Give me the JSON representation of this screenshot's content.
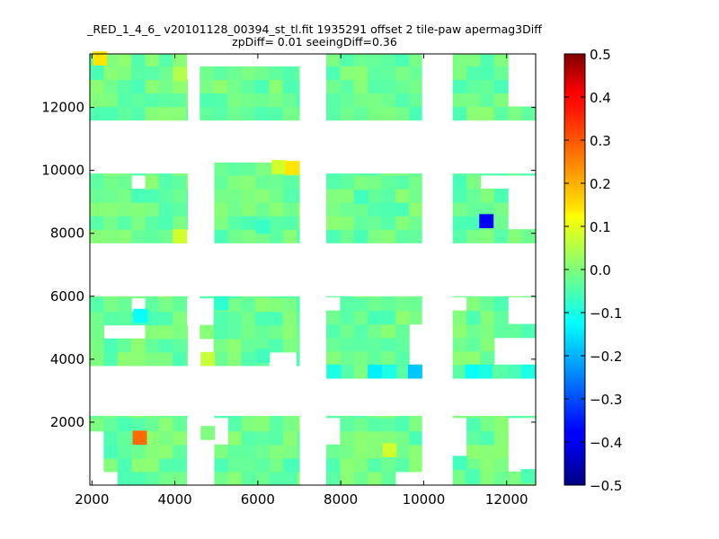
{
  "chart_data": {
    "type": "heatmap",
    "title_lines": [
      "_RED_1_4_6_ v20101128_00394_st_tl.fit 1935291 offset 2 tile-paw apermag3Diff",
      "zpDiff= 0.01 seeingDiff=0.36"
    ],
    "xlabel": "",
    "ylabel": "",
    "xlim": [
      1950,
      12700
    ],
    "ylim": [
      0,
      13700
    ],
    "xticks": [
      2000,
      4000,
      6000,
      8000,
      10000,
      12000
    ],
    "yticks": [
      2000,
      4000,
      6000,
      8000,
      10000,
      12000
    ],
    "colorbar": {
      "colormap": "jet",
      "range": [
        -0.5,
        0.5
      ],
      "ticks": [
        "0.5",
        "0.4",
        "0.3",
        "0.2",
        "0.1",
        "0.0",
        "−0.1",
        "−0.2",
        "−0.3",
        "−0.4",
        "−0.5"
      ]
    },
    "cell_size": [
      333,
      430
    ],
    "background_value": -0.02,
    "regions": [
      {
        "x": [
          1950,
          4300
        ],
        "y": [
          11600,
          13700
        ]
      },
      {
        "x": [
          4600,
          7000
        ],
        "y": [
          11600,
          13300
        ]
      },
      {
        "x": [
          7650,
          9950
        ],
        "y": [
          11600,
          13700
        ]
      },
      {
        "x": [
          10700,
          12700
        ],
        "y": [
          11600,
          13700
        ]
      },
      {
        "x": [
          1950,
          4300
        ],
        "y": [
          7700,
          9900
        ]
      },
      {
        "x": [
          4950,
          7000
        ],
        "y": [
          7700,
          10250
        ]
      },
      {
        "x": [
          7650,
          9950
        ],
        "y": [
          7700,
          9900
        ]
      },
      {
        "x": [
          10700,
          12700
        ],
        "y": [
          7700,
          9900
        ]
      },
      {
        "x": [
          1950,
          4300
        ],
        "y": [
          3800,
          6000
        ]
      },
      {
        "x": [
          4600,
          7000
        ],
        "y": [
          3800,
          6000
        ]
      },
      {
        "x": [
          7650,
          9950
        ],
        "y": [
          3400,
          6000
        ]
      },
      {
        "x": [
          10700,
          12700
        ],
        "y": [
          3400,
          6000
        ]
      },
      {
        "x": [
          1950,
          4300
        ],
        "y": [
          0,
          2200
        ]
      },
      {
        "x": [
          4950,
          7000
        ],
        "y": [
          0,
          2200
        ]
      },
      {
        "x": [
          7650,
          9950
        ],
        "y": [
          0,
          2200
        ]
      },
      {
        "x": [
          10700,
          12700
        ],
        "y": [
          0,
          2200
        ]
      }
    ],
    "holes": [
      {
        "x": [
          4300,
          4600
        ],
        "y": [
          12700,
          13700
        ]
      },
      {
        "x": [
          12000,
          12700
        ],
        "y": [
          12000,
          13700
        ]
      },
      {
        "x": [
          2950,
          3300
        ],
        "y": [
          9500,
          9900
        ]
      },
      {
        "x": [
          4300,
          4950
        ],
        "y": [
          7700,
          8100
        ]
      },
      {
        "x": [
          11300,
          12700
        ],
        "y": [
          9500,
          9900
        ]
      },
      {
        "x": [
          12000,
          12700
        ],
        "y": [
          8000,
          9500
        ]
      },
      {
        "x": [
          2300,
          3300
        ],
        "y": [
          4700,
          5100
        ]
      },
      {
        "x": [
          2950,
          3300
        ],
        "y": [
          5600,
          6000
        ]
      },
      {
        "x": [
          4300,
          4950
        ],
        "y": [
          5200,
          6000
        ]
      },
      {
        "x": [
          4600,
          4950
        ],
        "y": [
          3800,
          4500
        ]
      },
      {
        "x": [
          6300,
          7000
        ],
        "y": [
          3800,
          4400
        ]
      },
      {
        "x": [
          9650,
          9950
        ],
        "y": [
          4000,
          5200
        ]
      },
      {
        "x": [
          7650,
          8000
        ],
        "y": [
          5500,
          6000
        ]
      },
      {
        "x": [
          10700,
          11000
        ],
        "y": [
          5600,
          6000
        ]
      },
      {
        "x": [
          12000,
          12700
        ],
        "y": [
          5200,
          6000
        ]
      },
      {
        "x": [
          11700,
          12700
        ],
        "y": [
          3800,
          4500
        ]
      },
      {
        "x": [
          1950,
          2300
        ],
        "y": [
          1400,
          1800
        ]
      },
      {
        "x": [
          1950,
          2300
        ],
        "y": [
          0,
          1400
        ]
      },
      {
        "x": [
          2300,
          2650
        ],
        "y": [
          0,
          500
        ]
      },
      {
        "x": [
          4300,
          4950
        ],
        "y": [
          0,
          2200
        ]
      },
      {
        "x": [
          4950,
          5300
        ],
        "y": [
          1400,
          2200
        ]
      },
      {
        "x": [
          7650,
          8000
        ],
        "y": [
          1400,
          2200
        ]
      },
      {
        "x": [
          9300,
          9950
        ],
        "y": [
          0,
          500
        ]
      },
      {
        "x": [
          10700,
          11000
        ],
        "y": [
          1000,
          2200
        ]
      },
      {
        "x": [
          12000,
          12700
        ],
        "y": [
          500,
          2200
        ]
      },
      {
        "x": [
          3950,
          4300
        ],
        "y": [
          0,
          200
        ]
      }
    ],
    "extra_cells": [
      {
        "x": 4620,
        "y": 1450,
        "v": 0.0
      }
    ],
    "special_cells": [
      {
        "x": 2020,
        "y": 13350,
        "v": 0.15
      },
      {
        "x": 3950,
        "y": 12850,
        "v": 0.05
      },
      {
        "x": 6330,
        "y": 9900,
        "v": 0.08
      },
      {
        "x": 6660,
        "y": 9870,
        "v": 0.15
      },
      {
        "x": 3950,
        "y": 7700,
        "v": 0.08
      },
      {
        "x": 11340,
        "y": 8180,
        "v": -0.38
      },
      {
        "x": 3000,
        "y": 5170,
        "v": -0.12
      },
      {
        "x": 4620,
        "y": 3800,
        "v": 0.07
      },
      {
        "x": 7660,
        "y": 3400,
        "v": -0.1
      },
      {
        "x": 8650,
        "y": 3400,
        "v": -0.14
      },
      {
        "x": 9000,
        "y": 3400,
        "v": -0.1
      },
      {
        "x": 9620,
        "y": 3400,
        "v": -0.18
      },
      {
        "x": 11000,
        "y": 3400,
        "v": -0.12
      },
      {
        "x": 11320,
        "y": 3400,
        "v": -0.1
      },
      {
        "x": 12340,
        "y": 3400,
        "v": -0.1
      },
      {
        "x": 2980,
        "y": 1300,
        "v": 0.27
      },
      {
        "x": 9000,
        "y": 900,
        "v": 0.08
      },
      {
        "x": 10700,
        "y": 500,
        "v": -0.06
      },
      {
        "x": 11000,
        "y": 80,
        "v": -0.05
      },
      {
        "x": 12340,
        "y": 80,
        "v": -0.05
      },
      {
        "x": 5950,
        "y": 3900,
        "v": -0.06
      },
      {
        "x": 8320,
        "y": 8950,
        "v": -0.06
      },
      {
        "x": 5950,
        "y": 8000,
        "v": -0.07
      },
      {
        "x": 4950,
        "y": 5570,
        "v": -0.08
      }
    ]
  }
}
